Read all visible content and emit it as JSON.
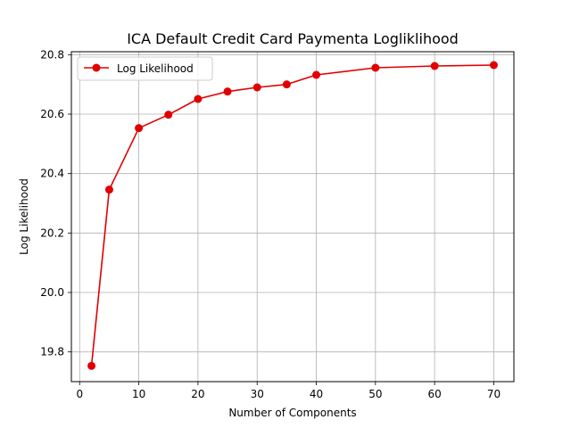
{
  "chart_data": {
    "type": "line",
    "title": "ICA Default Credit Card Paymenta Logliklihood",
    "xlabel": "Number of Components",
    "ylabel": "Log Likelihood",
    "xlim": [
      -1.4,
      73.4
    ],
    "ylim": [
      19.7,
      20.81
    ],
    "xticks": [
      0,
      10,
      20,
      30,
      40,
      50,
      60,
      70
    ],
    "yticks": [
      19.8,
      20.0,
      20.2,
      20.4,
      20.6,
      20.8
    ],
    "xtick_labels": [
      "0",
      "10",
      "20",
      "30",
      "40",
      "50",
      "60",
      "70"
    ],
    "ytick_labels": [
      "19.8",
      "20.0",
      "20.2",
      "20.4",
      "20.6",
      "20.8"
    ],
    "grid": true,
    "legend_position": "top-left",
    "series": [
      {
        "name": "Log Likelihood",
        "color": "#e00000",
        "marker": "circle",
        "x": [
          2,
          5,
          10,
          15,
          20,
          25,
          30,
          35,
          40,
          50,
          60,
          70
        ],
        "y": [
          19.753,
          20.346,
          20.553,
          20.598,
          20.651,
          20.676,
          20.69,
          20.7,
          20.732,
          20.756,
          20.762,
          20.765
        ]
      }
    ]
  }
}
